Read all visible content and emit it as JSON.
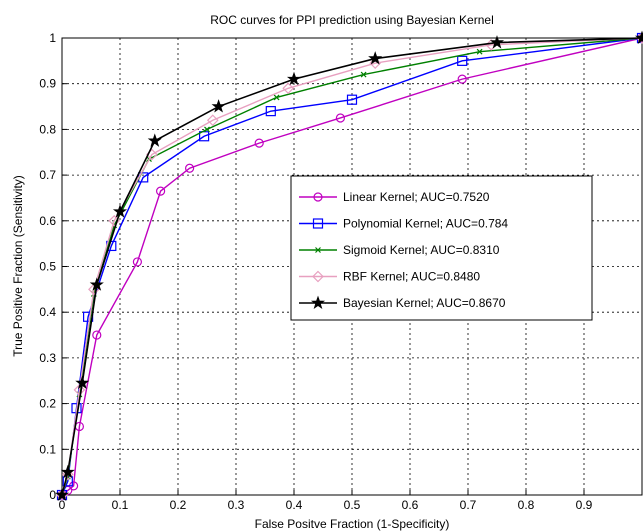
{
  "chart_data": {
    "type": "line",
    "title": "ROC curves for PPI prediction using Bayesian Kernel",
    "xlabel": "False Positve Fraction (1-Specificity)",
    "ylabel": "True Positive Fraction (Sensitivity)",
    "xlim": [
      0,
      1
    ],
    "ylim": [
      0,
      1
    ],
    "x_ticks": [
      "0",
      "0.1",
      "0.2",
      "0.3",
      "0.4",
      "0.5",
      "0.6",
      "0.7",
      "0.8",
      "0.9"
    ],
    "y_ticks": [
      "0",
      "0.1",
      "0.2",
      "0.3",
      "0.4",
      "0.5",
      "0.6",
      "0.7",
      "0.8",
      "0.9",
      "1"
    ],
    "grid": true,
    "legend_position": "center-right",
    "series": [
      {
        "name": "Linear Kernel; AUC=0.7520",
        "color": "#c000c0",
        "marker": "circle",
        "x": [
          0,
          0.01,
          0.02,
          0.03,
          0.06,
          0.13,
          0.17,
          0.22,
          0.34,
          0.48,
          0.69,
          1.0
        ],
        "y": [
          0,
          0.01,
          0.02,
          0.15,
          0.35,
          0.51,
          0.665,
          0.715,
          0.77,
          0.825,
          0.91,
          1.0
        ]
      },
      {
        "name": "Polynomial Kernel; AUC=0.784",
        "color": "#0000ff",
        "marker": "square",
        "x": [
          0,
          0.01,
          0.025,
          0.045,
          0.085,
          0.14,
          0.245,
          0.36,
          0.5,
          0.69,
          1.0
        ],
        "y": [
          0,
          0.03,
          0.19,
          0.39,
          0.545,
          0.695,
          0.785,
          0.84,
          0.865,
          0.95,
          1.0
        ]
      },
      {
        "name": "Sigmoid Kernel; AUC=0.8310",
        "color": "#008000",
        "marker": "x",
        "x": [
          0,
          0.01,
          0.03,
          0.055,
          0.09,
          0.15,
          0.25,
          0.37,
          0.52,
          0.72,
          1.0
        ],
        "y": [
          0,
          0.04,
          0.22,
          0.44,
          0.59,
          0.735,
          0.8,
          0.87,
          0.92,
          0.97,
          1.0
        ]
      },
      {
        "name": "RBF Kernel; AUC=0.8480",
        "color": "#e8a0c0",
        "marker": "diamond",
        "x": [
          0,
          0.01,
          0.03,
          0.055,
          0.09,
          0.155,
          0.26,
          0.39,
          0.54,
          0.74,
          1.0
        ],
        "y": [
          0,
          0.045,
          0.23,
          0.45,
          0.6,
          0.745,
          0.82,
          0.89,
          0.945,
          0.985,
          1.0
        ]
      },
      {
        "name": "Bayesian Kernel; AUC=0.8670",
        "color": "#000000",
        "marker": "star",
        "x": [
          0,
          0.01,
          0.035,
          0.06,
          0.1,
          0.16,
          0.27,
          0.4,
          0.54,
          0.75,
          1.0
        ],
        "y": [
          0,
          0.05,
          0.245,
          0.46,
          0.62,
          0.775,
          0.85,
          0.91,
          0.955,
          0.99,
          1.0
        ]
      }
    ]
  }
}
